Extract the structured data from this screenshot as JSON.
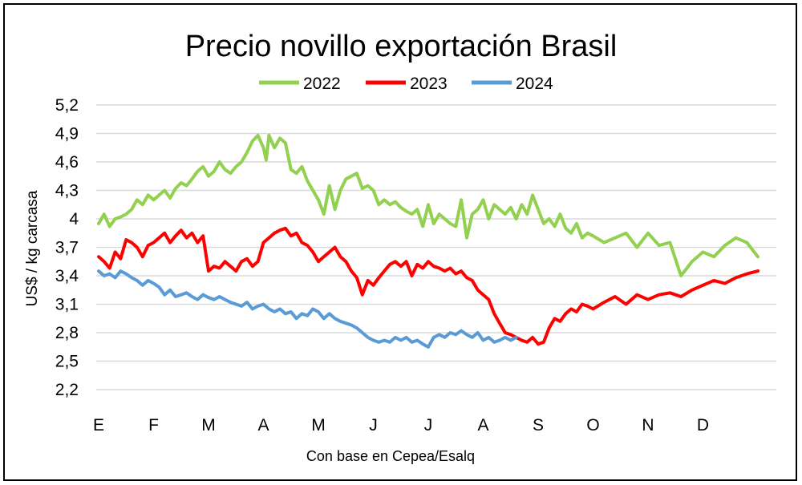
{
  "chart_data": {
    "type": "line",
    "title": "Precio novillo exportación Brasil",
    "xlabel": "Con base en Cepea/Esalq",
    "ylabel": "US$ / kg carcasa",
    "ylim": [
      2.2,
      5.2
    ],
    "yticks": [
      "5,2",
      "4,9",
      "4,6",
      "4,3",
      "4",
      "3,7",
      "3,4",
      "3,1",
      "2,8",
      "2,5",
      "2,2"
    ],
    "ytick_values": [
      5.2,
      4.9,
      4.6,
      4.3,
      4.0,
      3.7,
      3.4,
      3.1,
      2.8,
      2.5,
      2.2
    ],
    "months": [
      "E",
      "F",
      "M",
      "A",
      "M",
      "J",
      "J",
      "A",
      "S",
      "O",
      "N",
      "D"
    ],
    "grid": "horizontal",
    "legend_position": "top-center",
    "series": [
      {
        "name": "2022",
        "color": "#92d050",
        "x": [
          0.0,
          0.1,
          0.2,
          0.3,
          0.4,
          0.5,
          0.6,
          0.7,
          0.8,
          0.9,
          1.0,
          1.1,
          1.2,
          1.3,
          1.4,
          1.5,
          1.6,
          1.7,
          1.8,
          1.9,
          2.0,
          2.1,
          2.2,
          2.3,
          2.4,
          2.5,
          2.6,
          2.7,
          2.8,
          2.9,
          3.0,
          3.05,
          3.1,
          3.2,
          3.3,
          3.4,
          3.5,
          3.6,
          3.7,
          3.8,
          3.9,
          4.0,
          4.1,
          4.2,
          4.3,
          4.4,
          4.5,
          4.6,
          4.7,
          4.8,
          4.9,
          5.0,
          5.1,
          5.2,
          5.3,
          5.4,
          5.5,
          5.6,
          5.7,
          5.8,
          5.9,
          6.0,
          6.1,
          6.2,
          6.3,
          6.4,
          6.5,
          6.6,
          6.7,
          6.8,
          6.9,
          7.0,
          7.1,
          7.2,
          7.3,
          7.4,
          7.5,
          7.6,
          7.7,
          7.8,
          7.9,
          8.0,
          8.1,
          8.2,
          8.3,
          8.4,
          8.5,
          8.6,
          8.7,
          8.8,
          8.9,
          9.0,
          9.2,
          9.4,
          9.6,
          9.8,
          10.0,
          10.2,
          10.4,
          10.6,
          10.8,
          11.0,
          11.2,
          11.4,
          11.6,
          11.8,
          12.0
        ],
        "values": [
          3.95,
          4.05,
          3.92,
          4.0,
          4.02,
          4.05,
          4.1,
          4.2,
          4.15,
          4.25,
          4.2,
          4.25,
          4.3,
          4.22,
          4.32,
          4.38,
          4.35,
          4.42,
          4.5,
          4.55,
          4.45,
          4.5,
          4.6,
          4.52,
          4.48,
          4.55,
          4.6,
          4.7,
          4.82,
          4.88,
          4.75,
          4.62,
          4.88,
          4.75,
          4.85,
          4.8,
          4.52,
          4.48,
          4.55,
          4.4,
          4.3,
          4.2,
          4.05,
          4.35,
          4.1,
          4.3,
          4.42,
          4.45,
          4.48,
          4.32,
          4.35,
          4.3,
          4.15,
          4.2,
          4.15,
          4.18,
          4.12,
          4.08,
          4.05,
          4.1,
          3.92,
          4.15,
          3.95,
          4.05,
          4.0,
          3.95,
          3.92,
          4.2,
          3.8,
          4.05,
          4.1,
          4.2,
          4.0,
          4.15,
          4.1,
          4.05,
          4.12,
          4.0,
          4.15,
          4.05,
          4.25,
          4.1,
          3.95,
          4.0,
          3.92,
          4.05,
          3.9,
          3.85,
          3.95,
          3.8,
          3.85,
          3.82,
          3.75,
          3.8,
          3.85,
          3.7,
          3.85,
          3.72,
          3.75,
          3.4,
          3.55,
          3.65,
          3.6,
          3.72,
          3.8,
          3.75,
          3.6
        ]
      },
      {
        "name": "2023",
        "color": "#ff0000",
        "x": [
          0.0,
          0.1,
          0.2,
          0.3,
          0.4,
          0.5,
          0.6,
          0.7,
          0.8,
          0.9,
          1.0,
          1.1,
          1.2,
          1.3,
          1.4,
          1.5,
          1.6,
          1.7,
          1.8,
          1.9,
          2.0,
          2.1,
          2.2,
          2.3,
          2.4,
          2.5,
          2.6,
          2.7,
          2.8,
          2.9,
          3.0,
          3.1,
          3.2,
          3.3,
          3.4,
          3.5,
          3.6,
          3.7,
          3.8,
          3.9,
          4.0,
          4.1,
          4.2,
          4.3,
          4.4,
          4.5,
          4.6,
          4.7,
          4.8,
          4.9,
          5.0,
          5.1,
          5.2,
          5.3,
          5.4,
          5.5,
          5.6,
          5.7,
          5.8,
          5.9,
          6.0,
          6.1,
          6.2,
          6.3,
          6.4,
          6.5,
          6.6,
          6.7,
          6.8,
          6.9,
          7.0,
          7.1,
          7.2,
          7.3,
          7.4,
          7.5,
          7.6,
          7.7,
          7.8,
          7.9,
          8.0,
          8.1,
          8.2,
          8.3,
          8.4,
          8.5,
          8.6,
          8.7,
          8.8,
          8.9,
          9.0,
          9.2,
          9.4,
          9.6,
          9.8,
          10.0,
          10.2,
          10.4,
          10.6,
          10.8,
          11.0,
          11.2,
          11.4,
          11.6,
          11.8,
          12.0
        ],
        "values": [
          3.6,
          3.55,
          3.48,
          3.65,
          3.58,
          3.78,
          3.75,
          3.7,
          3.6,
          3.72,
          3.75,
          3.8,
          3.85,
          3.75,
          3.82,
          3.88,
          3.8,
          3.85,
          3.75,
          3.82,
          3.45,
          3.5,
          3.48,
          3.55,
          3.5,
          3.45,
          3.55,
          3.58,
          3.5,
          3.55,
          3.75,
          3.8,
          3.85,
          3.88,
          3.9,
          3.82,
          3.85,
          3.75,
          3.72,
          3.65,
          3.55,
          3.6,
          3.65,
          3.7,
          3.6,
          3.55,
          3.45,
          3.38,
          3.2,
          3.35,
          3.3,
          3.38,
          3.45,
          3.52,
          3.55,
          3.5,
          3.55,
          3.4,
          3.52,
          3.48,
          3.55,
          3.5,
          3.48,
          3.45,
          3.48,
          3.42,
          3.45,
          3.38,
          3.35,
          3.25,
          3.2,
          3.15,
          3.0,
          2.9,
          2.8,
          2.78,
          2.75,
          2.72,
          2.7,
          2.75,
          2.68,
          2.7,
          2.85,
          2.95,
          2.92,
          3.0,
          3.05,
          3.02,
          3.1,
          3.08,
          3.05,
          3.12,
          3.18,
          3.1,
          3.2,
          3.15,
          3.2,
          3.22,
          3.18,
          3.25,
          3.3,
          3.35,
          3.32,
          3.38,
          3.42,
          3.45
        ]
      },
      {
        "name": "2024",
        "color": "#5b9bd5",
        "x": [
          0.0,
          0.1,
          0.2,
          0.3,
          0.4,
          0.5,
          0.6,
          0.7,
          0.8,
          0.9,
          1.0,
          1.1,
          1.2,
          1.3,
          1.4,
          1.5,
          1.6,
          1.7,
          1.8,
          1.9,
          2.0,
          2.1,
          2.2,
          2.3,
          2.4,
          2.5,
          2.6,
          2.7,
          2.8,
          2.9,
          3.0,
          3.1,
          3.2,
          3.3,
          3.4,
          3.5,
          3.6,
          3.7,
          3.8,
          3.9,
          4.0,
          4.1,
          4.2,
          4.3,
          4.4,
          4.5,
          4.6,
          4.7,
          4.8,
          4.9,
          5.0,
          5.1,
          5.2,
          5.3,
          5.4,
          5.5,
          5.6,
          5.7,
          5.8,
          5.9,
          6.0,
          6.1,
          6.2,
          6.3,
          6.4,
          6.5,
          6.6,
          6.7,
          6.8,
          6.9,
          7.0,
          7.1,
          7.2,
          7.3,
          7.4,
          7.5,
          7.6
        ],
        "values": [
          3.45,
          3.4,
          3.42,
          3.38,
          3.45,
          3.42,
          3.38,
          3.35,
          3.3,
          3.35,
          3.32,
          3.28,
          3.2,
          3.25,
          3.18,
          3.2,
          3.22,
          3.18,
          3.15,
          3.2,
          3.17,
          3.15,
          3.18,
          3.15,
          3.12,
          3.1,
          3.08,
          3.12,
          3.05,
          3.08,
          3.1,
          3.05,
          3.02,
          3.05,
          3.0,
          3.02,
          2.95,
          3.0,
          2.98,
          3.05,
          3.02,
          2.95,
          3.0,
          2.95,
          2.92,
          2.9,
          2.88,
          2.85,
          2.8,
          2.75,
          2.72,
          2.7,
          2.72,
          2.7,
          2.75,
          2.72,
          2.75,
          2.7,
          2.72,
          2.68,
          2.65,
          2.75,
          2.78,
          2.75,
          2.8,
          2.78,
          2.82,
          2.78,
          2.75,
          2.8,
          2.72,
          2.75,
          2.7,
          2.72,
          2.75,
          2.72,
          2.75
        ]
      }
    ]
  }
}
